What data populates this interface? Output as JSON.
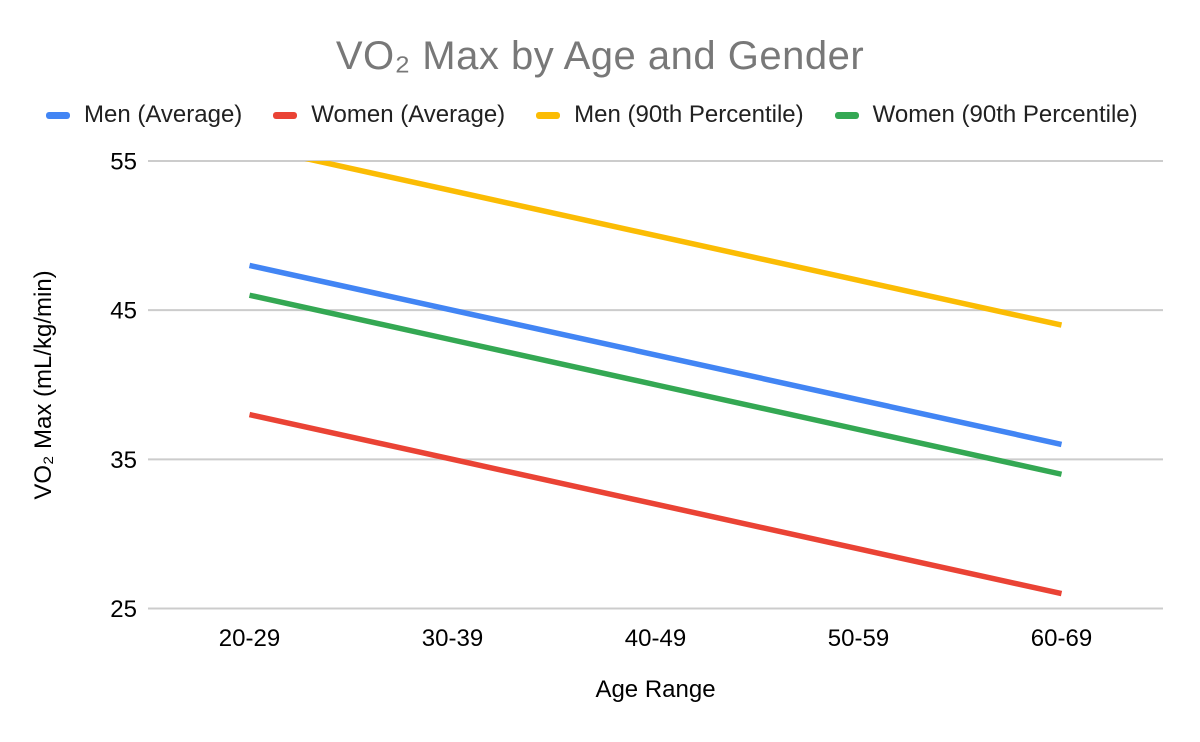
{
  "chart_data": {
    "type": "line",
    "title": "VO₂ Max by Age and Gender",
    "xlabel": "Age Range",
    "ylabel": "VO₂ Max (mL/kg/min)",
    "categories": [
      "20-29",
      "30-39",
      "40-49",
      "50-59",
      "60-69"
    ],
    "series": [
      {
        "name": "Men (Average)",
        "color": "#4285F4",
        "values": [
          48,
          45,
          42,
          39,
          36
        ]
      },
      {
        "name": "Women (Average)",
        "color": "#EA4335",
        "values": [
          38,
          35,
          32,
          29,
          26
        ]
      },
      {
        "name": "Men (90th Percentile)",
        "color": "#FBBC04",
        "values": [
          56,
          53,
          50,
          47,
          44
        ]
      },
      {
        "name": "Women (90th Percentile)",
        "color": "#34A853",
        "values": [
          46,
          43,
          40,
          37,
          34
        ]
      }
    ],
    "ylim": [
      25,
      55
    ],
    "y_ticks": [
      55,
      45,
      35,
      25
    ],
    "grid": "horizontal",
    "gridline_color": "#cccccc",
    "tick_label_color": "#000000",
    "legend_position": "top",
    "clip_above_ymax": true
  }
}
